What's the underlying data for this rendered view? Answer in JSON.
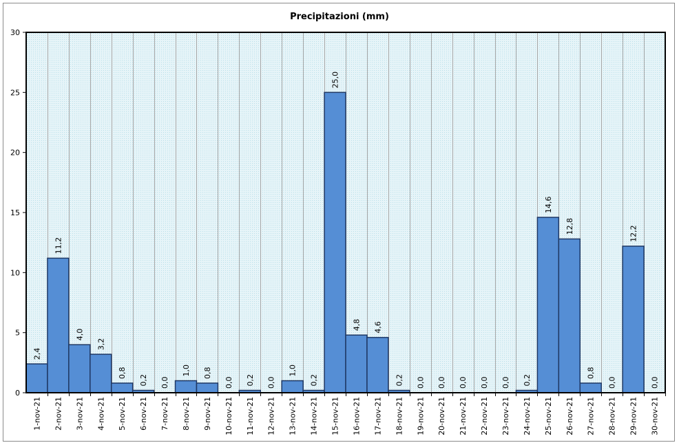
{
  "chart_data": {
    "type": "bar",
    "title": "Precipitazioni (mm)",
    "xlabel": "",
    "ylabel": "",
    "ylim": [
      0,
      30
    ],
    "yticks": [
      "0",
      "5",
      "10",
      "15",
      "20",
      "25",
      "30"
    ],
    "categories": [
      "1-nov-21",
      "2-nov-21",
      "3-nov-21",
      "4-nov-21",
      "5-nov-21",
      "6-nov-21",
      "7-nov-21",
      "8-nov-21",
      "9-nov-21",
      "10-nov-21",
      "11-nov-21",
      "12-nov-21",
      "13-nov-21",
      "14-nov-21",
      "15-nov-21",
      "16-nov-21",
      "17-nov-21",
      "18-nov-21",
      "19-nov-21",
      "20-nov-21",
      "21-nov-21",
      "22-nov-21",
      "23-nov-21",
      "24-nov-21",
      "25-nov-21",
      "26-nov-21",
      "27-nov-21",
      "28-nov-21",
      "29-nov-21",
      "30-nov-21"
    ],
    "values": [
      2.4,
      11.2,
      4.0,
      3.2,
      0.8,
      0.2,
      0.0,
      1.0,
      0.8,
      0.0,
      0.2,
      0.0,
      1.0,
      0.2,
      25.0,
      4.8,
      4.6,
      0.2,
      0.0,
      0.0,
      0.0,
      0.0,
      0.0,
      0.2,
      14.6,
      12.8,
      0.8,
      0.0,
      12.2,
      0.0
    ],
    "data_labels": [
      "2,4",
      "11,2",
      "4,0",
      "3,2",
      "0,8",
      "0,2",
      "0,0",
      "1,0",
      "0,8",
      "0,0",
      "0,2",
      "0,0",
      "1,0",
      "0,2",
      "25,0",
      "4,8",
      "4,6",
      "0,2",
      "0,0",
      "0,0",
      "0,0",
      "0,0",
      "0,0",
      "0,2",
      "14,6",
      "12,8",
      "0,8",
      "0,0",
      "12,2",
      "0,0"
    ],
    "grid": true,
    "legend": "none",
    "colors": {
      "bar_fill": "#558ed5",
      "bar_stroke": "#1f3864",
      "plot_background": "#daeef3",
      "plot_border": "#000000",
      "gridline": "#a6a6a6"
    }
  }
}
